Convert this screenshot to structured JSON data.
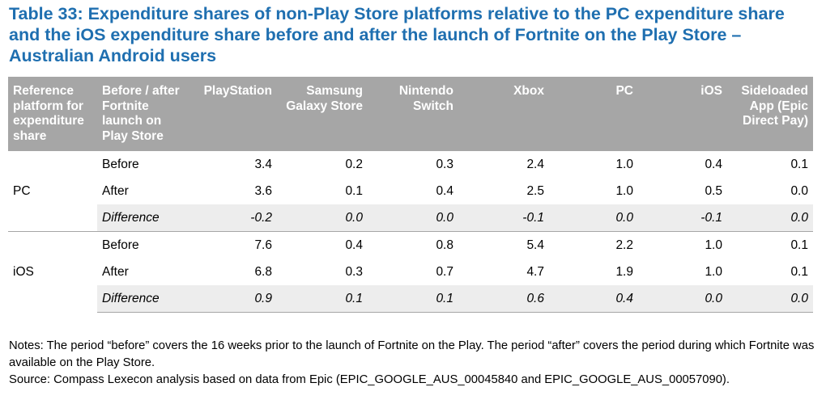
{
  "title": "Table 33: Expenditure shares of non-Play Store platforms relative to the PC expenditure share and the iOS expenditure share before and after the launch of Fortnite on the Play Store – Australian Android users",
  "table": {
    "headers": [
      "Reference platform for expenditure share",
      "Before / after Fortnite launch on Play Store",
      "PlayStation",
      "Samsung Galaxy Store",
      "Nintendo Switch",
      "Xbox",
      "PC",
      "iOS",
      "Sideloaded App (Epic Direct Pay)"
    ],
    "groups": [
      {
        "name": "PC",
        "rows": [
          {
            "label": "Before",
            "values": [
              "3.4",
              "0.2",
              "0.3",
              "2.4",
              "1.0",
              "0.4",
              "0.1"
            ]
          },
          {
            "label": "After",
            "values": [
              "3.6",
              "0.1",
              "0.4",
              "2.5",
              "1.0",
              "0.5",
              "0.0"
            ]
          },
          {
            "label": "Difference",
            "values": [
              "-0.2",
              "0.0",
              "0.0",
              "-0.1",
              "0.0",
              "-0.1",
              "0.0"
            ]
          }
        ]
      },
      {
        "name": "iOS",
        "rows": [
          {
            "label": "Before",
            "values": [
              "7.6",
              "0.4",
              "0.8",
              "5.4",
              "2.2",
              "1.0",
              "0.1"
            ]
          },
          {
            "label": "After",
            "values": [
              "6.8",
              "0.3",
              "0.7",
              "4.7",
              "1.9",
              "1.0",
              "0.1"
            ]
          },
          {
            "label": "Difference",
            "values": [
              "0.9",
              "0.1",
              "0.1",
              "0.6",
              "0.4",
              "0.0",
              "0.0"
            ]
          }
        ]
      }
    ]
  },
  "notes": "Notes: The period “before” covers the 16 weeks prior to the launch of Fortnite on the Play. The period “after” covers the period during which Fortnite was available on the Play Store.",
  "source": "Source: Compass Lexecon analysis based on data from Epic (EPIC_GOOGLE_AUS_00045840 and EPIC_GOOGLE_AUS_00057090).",
  "colors": {
    "title": "#1f6fb0",
    "header_bg": "#a6a6a6",
    "difference_row_bg": "#ededed"
  }
}
